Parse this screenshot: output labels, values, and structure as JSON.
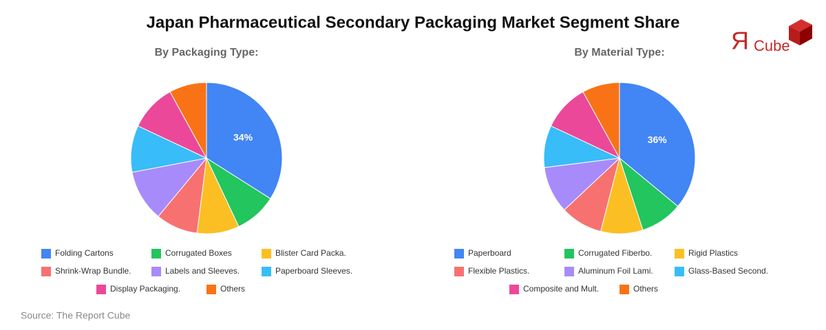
{
  "title": "Japan Pharmaceutical Secondary Packaging Market Segment Share",
  "source": "Source: The Report Cube",
  "logo": {
    "mark": "Я",
    "text": "Cube"
  },
  "chart_data": [
    {
      "type": "pie",
      "title": "By Packaging Type:",
      "categories": [
        "Folding Cartons",
        "Corrugated Boxes",
        "Blister Card Packa.",
        "Shrink-Wrap Bundle.",
        "Labels and Sleeves.",
        "Paperboard Sleeves.",
        "Display Packaging.",
        "Others"
      ],
      "values": [
        34,
        9,
        9,
        9,
        11,
        10,
        10,
        8
      ],
      "value_labels": [
        "34%",
        null,
        null,
        null,
        null,
        null,
        null,
        null
      ],
      "colors": [
        "#4285f4",
        "#22c55e",
        "#fbbf24",
        "#f87171",
        "#a78bfa",
        "#38bdf8",
        "#ec4899",
        "#f97316"
      ]
    },
    {
      "type": "pie",
      "title": "By Material Type:",
      "categories": [
        "Paperboard",
        "Corrugated Fiberbo.",
        "Rigid Plastics",
        "Flexible Plastics.",
        "Aluminum Foil Lami.",
        "Glass-Based Second.",
        "Composite and Mult.",
        "Others"
      ],
      "values": [
        36,
        9,
        9,
        9,
        10,
        9,
        10,
        8
      ],
      "value_labels": [
        "36%",
        null,
        null,
        null,
        null,
        null,
        null,
        null
      ],
      "colors": [
        "#4285f4",
        "#22c55e",
        "#fbbf24",
        "#f87171",
        "#a78bfa",
        "#38bdf8",
        "#ec4899",
        "#f97316"
      ]
    }
  ]
}
